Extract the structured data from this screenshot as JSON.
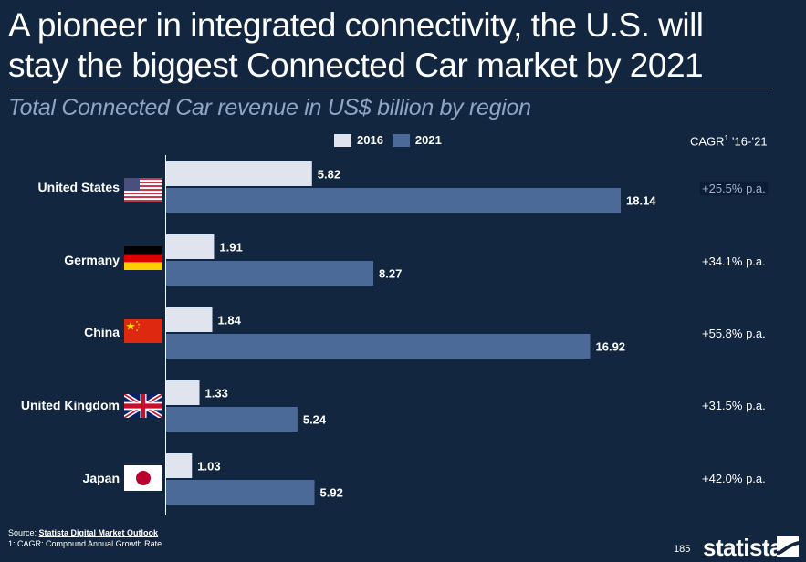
{
  "header": {
    "title_line1": "A pioneer in integrated connectivity, the U.S. will",
    "title_line2": "stay the biggest Connected Car market by 2021",
    "subtitle": "Total Connected Car revenue in US$ billion by region"
  },
  "colors": {
    "background": "#12263f",
    "series_2016": "#dfe4ee",
    "series_2021": "#4b6a98",
    "axis": "#ffffff"
  },
  "cagr_header": {
    "label": "CAGR",
    "sup": "1",
    "period": " ’16-’21"
  },
  "chart_data": {
    "type": "bar",
    "orientation": "horizontal",
    "title": "Total Connected Car revenue in US$ billion by region",
    "xlabel": "",
    "ylabel": "",
    "categories": [
      "United States",
      "Germany",
      "China",
      "United Kingdom",
      "Japan"
    ],
    "series": [
      {
        "name": "2016",
        "values": [
          5.82,
          1.91,
          1.84,
          1.33,
          1.03
        ]
      },
      {
        "name": "2021",
        "values": [
          18.14,
          8.27,
          16.92,
          5.24,
          5.92
        ]
      }
    ],
    "value_labels": {
      "2016": [
        "5.82",
        "1.91",
        "1.84",
        "1.33",
        "1.03"
      ],
      "2021": [
        "18.14",
        "8.27",
        "16.92",
        "5.24",
        "5.92"
      ]
    },
    "cagr": [
      "+25.5% p.a.",
      "+34.1% p.a.",
      "+55.8% p.a.",
      "+31.5% p.a.",
      "+42.0% p.a."
    ],
    "legend": [
      "2016",
      "2021"
    ],
    "legend_position": "top",
    "grid": false,
    "xlim": [
      0,
      18.14
    ]
  },
  "flags": [
    "us-flag",
    "germany-flag",
    "china-flag",
    "uk-flag",
    "japan-flag"
  ],
  "footer": {
    "source_prefix": "Source: ",
    "source_link": "Statista Digital Market Outlook",
    "footnote": "1: CAGR: Compound Annual Growth Rate",
    "page_number": "185",
    "logo_text": "statista"
  }
}
